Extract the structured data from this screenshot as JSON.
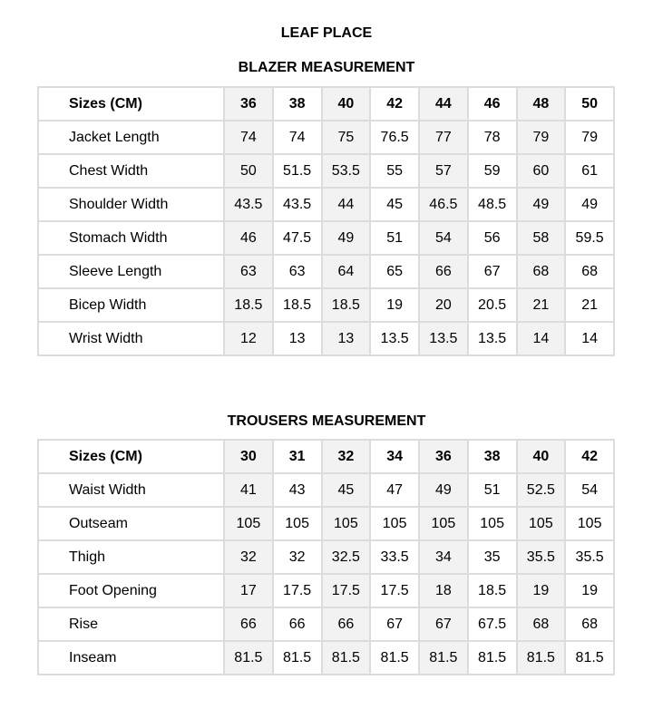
{
  "brand": "LEAF PLACE",
  "colors": {
    "border": "#dcdcdc",
    "shaded_column": "#f2f2f2"
  },
  "blazer": {
    "title": "BLAZER MEASUREMENT",
    "header_label": "Sizes (CM)",
    "sizes": [
      "36",
      "38",
      "40",
      "42",
      "44",
      "46",
      "48",
      "50"
    ],
    "rows": [
      {
        "label": "Jacket Length",
        "values": [
          "74",
          "74",
          "75",
          "76.5",
          "77",
          "78",
          "79",
          "79"
        ]
      },
      {
        "label": "Chest Width",
        "values": [
          "50",
          "51.5",
          "53.5",
          "55",
          "57",
          "59",
          "60",
          "61"
        ]
      },
      {
        "label": "Shoulder Width",
        "values": [
          "43.5",
          "43.5",
          "44",
          "45",
          "46.5",
          "48.5",
          "49",
          "49"
        ]
      },
      {
        "label": "Stomach  Width",
        "values": [
          "46",
          "47.5",
          "49",
          "51",
          "54",
          "56",
          "58",
          "59.5"
        ]
      },
      {
        "label": "Sleeve Length",
        "values": [
          "63",
          "63",
          "64",
          "65",
          "66",
          "67",
          "68",
          "68"
        ]
      },
      {
        "label": "Bicep Width",
        "values": [
          "18.5",
          "18.5",
          "18.5",
          "19",
          "20",
          "20.5",
          "21",
          "21"
        ]
      },
      {
        "label": "Wrist Width",
        "values": [
          "12",
          "13",
          "13",
          "13.5",
          "13.5",
          "13.5",
          "14",
          "14"
        ]
      }
    ]
  },
  "trousers": {
    "title": "TROUSERS MEASUREMENT",
    "header_label": "Sizes (CM)",
    "sizes": [
      "30",
      "31",
      "32",
      "34",
      "36",
      "38",
      "40",
      "42"
    ],
    "rows": [
      {
        "label": "Waist Width",
        "values": [
          "41",
          "43",
          "45",
          "47",
          "49",
          "51",
          "52.5",
          "54"
        ]
      },
      {
        "label": "Outseam",
        "values": [
          "105",
          "105",
          "105",
          "105",
          "105",
          "105",
          "105",
          "105"
        ]
      },
      {
        "label": "Thigh",
        "values": [
          "32",
          "32",
          "32.5",
          "33.5",
          "34",
          "35",
          "35.5",
          "35.5"
        ]
      },
      {
        "label": "Foot Opening",
        "values": [
          "17",
          "17.5",
          "17.5",
          "17.5",
          "18",
          "18.5",
          "19",
          "19"
        ]
      },
      {
        "label": "Rise",
        "values": [
          "66",
          "66",
          "66",
          "67",
          "67",
          "67.5",
          "68",
          "68"
        ]
      },
      {
        "label": "Inseam",
        "values": [
          "81.5",
          "81.5",
          "81.5",
          "81.5",
          "81.5",
          "81.5",
          "81.5",
          "81.5"
        ]
      }
    ]
  }
}
